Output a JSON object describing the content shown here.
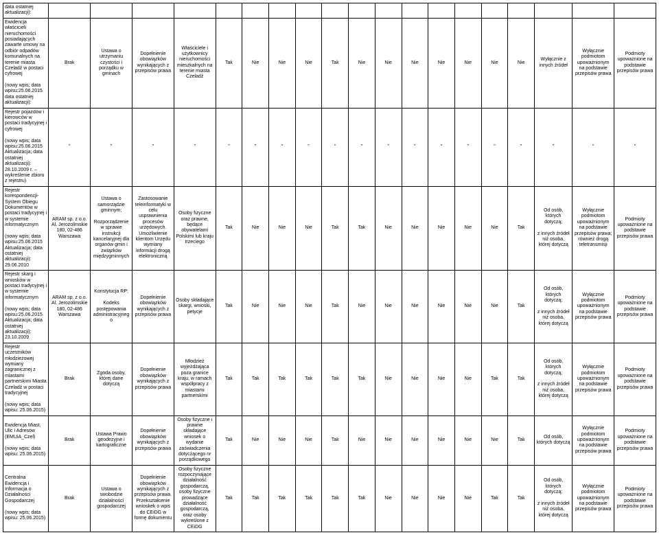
{
  "table": {
    "columns": 20,
    "border_color": "#000000",
    "background_color": "#ffffff",
    "text_color": "#000000",
    "font_size": 7,
    "rows": [
      {
        "cells": [
          "data ostatniej aktualizacji):",
          "",
          "",
          "",
          "",
          "",
          "",
          "",
          "",
          "",
          "",
          "",
          "",
          "",
          "",
          "",
          "",
          "",
          "",
          ""
        ]
      },
      {
        "cells": [
          "Ewidencja właścicieli nieruchomości posiadających zawarte umowy na odbiór odpadów komunalnych na terenie miasta Czeladź w postaci cyfrowej\n\n(nowy wpis; data wpisu:25.06.2015 data ostatniej aktualizacji):",
          "Brak",
          "Ustawa o utrzymaniu czystości i porządku w gminach",
          "Dopełnienie obowiązków wynikających z przepisów prawa",
          "Właściciele i użytkownicy nieruchomości mieszkalnych na terenie miasta Czeladź",
          "Tak",
          "Nie",
          "Nie",
          "Nie",
          "Tak",
          "Nie",
          "Nie",
          "Nie",
          "Nie",
          "Nie",
          "Nie",
          "Nie",
          "Wyłącznie z innych źródeł",
          "Wyłącznie podmiotom upoważnionym na podstawie przepisów prawa",
          "Podmioty upoważnione na podstawie przepisów prawa"
        ]
      },
      {
        "cells": [
          "Rejestr pojazdów i kierowców w postaci tradycyjnej i cyfrowej\n\n(nowy wpis; data wpisu:25.06.2015 Aktualizacja; data ostatniej aktualizacji): 28.10.2009 r. – wykreślenie zbioru z rejestru)",
          "\"",
          "\"",
          "\"",
          "\"",
          "\"",
          "\"",
          "\"",
          "\"",
          "\"",
          "\"",
          "\"",
          "\"",
          "\"",
          "\"",
          "\"",
          "\"",
          "\"",
          "\"",
          "\""
        ]
      },
      {
        "cells": [
          "Rejestr korespondencji- System Obiegu Dokumentów w postaci tradycyjnej i w systemie informatycznym\n\n(nowy wpis; data wpisu:25.06.2015 Aktualizacja; data ostatniej aktualizacji): 29.06.2010",
          "ARAM sp. z o.o. Al. Jerozolimskie 180, 02-486 Warszawa",
          "Ustawa o samorządzie gminnym;\n\nRozporządzenie w sprawie instrukcji kancelaryjnej dla organów gmin i związków międzygminnych",
          "Zastosowanie teleinformatyki w celu usprawnienia procesów urzędowych. Umożliwienie klientom Urzędu wymiany informacji drogą elektroniczną",
          "Osoby fizyczne oraz prawne, będące obywatelami Polskimi lub kraju trzeciego",
          "Tak",
          "Nie",
          "Nie",
          "Nie",
          "Tak",
          "Tak",
          "Nie",
          "Nie",
          "Nie",
          "Nie",
          "Nie",
          "Tak",
          "Od osób, których dotyczą;\n\nz innych źródeł niż osoba, której dotyczą",
          "Wyłącznie podmiotom upoważnionym na podstawie przepisów prawa; również drogą teletransmisji",
          "Podmioty upoważnione na podstawie przepisów prawa"
        ]
      },
      {
        "cells": [
          "Rejestr skarg i wniosków w postaci tradycyjnej i w systemie informatycznym\n\n(nowy wpis; data wpisu:25.06.2015 Aktualizacja; data ostatniej aktualizacji): 23.10.2009",
          "ARAM sp. z o.o. Al. Jerozolimskie 180, 02-486 Warszawa",
          "Konstytucja RP;\n\nKodeks postępowania administracyjnego",
          "Dopełnienie obowiązków wynikających z przepisów prawa",
          "Osoby składające skargi, wnioski, petycje",
          "Tak",
          "Nie",
          "Nie",
          "Nie",
          "Tak",
          "Nie",
          "Nie",
          "Nie",
          "Nie",
          "Nie",
          "Nie",
          "Tak",
          "Od osób, których dotyczą;\n\nz innych źródeł niż osoba, której dotyczą",
          "Wyłącznie podmiotom upoważnionym na podstawie przepisów prawa",
          "Podmioty upoważnione na podstawie przepisów prawa"
        ]
      },
      {
        "cells": [
          "Rejestr uczestników młodzieżowej wymiany zagranicznej z miastami partnerskimi Miasta Czeladź w postaci tradycyjnej\n\n(nowy wpis; data wpisu: 25.06.2015)",
          "Brak",
          "Zgoda osoby, której dane dotyczą",
          "Dopełnienie obowiązków wynikających z przepisów prawa",
          "Młodzież wyjeżdżająca poza granice kraju, w ramach współpracy z miastami partnerskimi",
          "Tak",
          "Tak",
          "Tak",
          "Tak",
          "Tak",
          "Tak",
          "Nie",
          "Nie",
          "Nie",
          "Nie",
          "Tak",
          "Tak",
          "Od osób, których dotyczą;\n\nz innych źródeł niż osoba, której dotyczą",
          "Wyłącznie podmiotom upoważnionym na podstawie przepisów prawa",
          "Podmioty upoważnione na podstawie przepisów prawa"
        ]
      },
      {
        "cells": [
          "Ewidencja Miast, Ulic i Adresów (EMUiA_Czel)\n\n(nowy wpis; data wpisu: 25.06.2015)",
          "Brak",
          "Ustawa Prawo geodezyjne i kartograficzne",
          "Dopełnienie obowiązków wynikających z przepisów prawa",
          "Osoby fizyczne i prawne składające wniosek o wydanie zaświadczenia dotyczącego nr porządkowego",
          "Tak",
          "Nie",
          "Nie",
          "Nie",
          "Tak",
          "Nie",
          "Nie",
          "Nie",
          "Nie",
          "Nie",
          "Nie",
          "Tak",
          "Od osób, których dotyczą",
          "Wyłącznie podmiotom upoważnionym na podstawie przepisów prawa",
          "Podmioty upoważnione na podstawie przepisów prawa"
        ]
      },
      {
        "cells": [
          "Centralna Ewidencja i Informacja o Działalności Gospodarczej\n\n(nowy wpis; data wpisu: 25.06.2015)",
          "Brak",
          "Ustawa o swobodzie działalności gospodarczej",
          "Dopełnienie obowiązków wynikających z przepisów prawa. Przekształcenie wnioskek o wpis do CEiDG w formę dokumentu",
          "Osoby fizyczne rozpoczynające działalność gospodarczą, osoby fizyczne prowadzące działalność gospodarczą, oraz osoby wykreślone z CEiDG",
          "Tak",
          "Tak",
          "Tak",
          "Tak",
          "Tak",
          "Tak",
          "Nie",
          "Nie",
          "Nie",
          "Nie",
          "Tak",
          "Tak",
          "Od osób, których dotyczą;\n\nz innych źródeł niż osoba, której dotyczą",
          "Wyłącznie podmiotom upoważnionym na podstawie przepisów prawa",
          "Podmioty upoważnione na podstawie przepisów prawa"
        ]
      }
    ]
  }
}
